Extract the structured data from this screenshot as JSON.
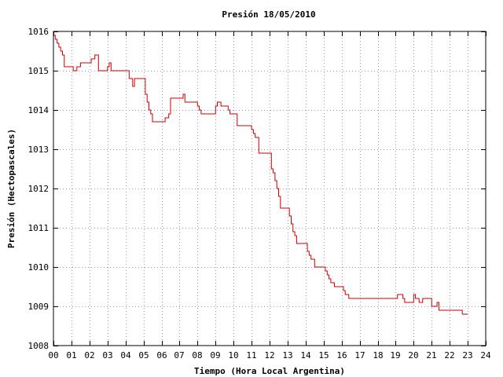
{
  "chart_data": {
    "type": "line",
    "title": "Presión 18/05/2010",
    "xlabel": "Tiempo (Hora Local Argentina)",
    "ylabel": "Presión (Hectopascales)",
    "xlim": [
      0,
      24
    ],
    "ylim": [
      1008,
      1016
    ],
    "x_ticks": [
      "00",
      "01",
      "02",
      "03",
      "04",
      "05",
      "06",
      "07",
      "08",
      "09",
      "10",
      "11",
      "12",
      "13",
      "14",
      "15",
      "16",
      "17",
      "18",
      "19",
      "20",
      "21",
      "22",
      "23",
      "24"
    ],
    "y_ticks": [
      "1008",
      "1009",
      "1010",
      "1011",
      "1012",
      "1013",
      "1014",
      "1015",
      "1016"
    ],
    "grid": true,
    "line_color": "#cc0000",
    "grid_color": "#a0a0a0",
    "step": true,
    "series": [
      {
        "x": [
          0,
          0.1,
          0.2,
          0.3,
          0.4,
          0.5,
          0.6,
          1.1,
          1.3,
          1.5,
          2.1,
          2.2,
          2.3,
          2.4,
          2.5,
          3.0,
          3.1,
          3.2,
          3.5,
          4.2,
          4.4,
          4.5,
          5.0,
          5.1,
          5.2,
          5.3,
          5.4,
          5.5,
          5.6,
          6.0,
          6.2,
          6.3,
          6.4,
          6.5,
          6.6,
          7.0,
          7.1,
          7.2,
          7.3,
          8.0,
          8.1,
          8.2,
          8.3,
          9.0,
          9.1,
          9.3,
          9.6,
          9.7,
          9.8,
          10.0,
          10.1,
          10.2,
          10.3,
          11.0,
          11.1,
          11.2,
          11.3,
          11.4,
          12.0,
          12.1,
          12.2,
          12.3,
          12.4,
          12.5,
          12.6,
          13.0,
          13.1,
          13.2,
          13.3,
          13.4,
          13.5,
          14.0,
          14.1,
          14.2,
          14.3,
          14.5,
          15.0,
          15.1,
          15.2,
          15.3,
          15.4,
          15.6,
          16.0,
          16.1,
          16.2,
          16.3,
          16.4,
          16.6,
          17.0,
          18.0,
          19.0,
          19.1,
          19.2,
          19.3,
          19.4,
          19.5,
          19.6,
          19.7,
          19.8,
          20.0,
          20.1,
          20.2,
          20.3,
          20.4,
          20.5,
          20.6,
          21.0,
          21.1,
          21.2,
          21.3,
          21.4,
          21.5,
          21.6,
          22.0,
          22.3,
          22.7,
          23.0
        ],
        "y": [
          1015.9,
          1015.8,
          1015.7,
          1015.6,
          1015.5,
          1015.4,
          1015.1,
          1015.0,
          1015.1,
          1015.2,
          1015.3,
          1015.3,
          1015.4,
          1015.4,
          1015.0,
          1015.1,
          1015.2,
          1015.0,
          1015.0,
          1014.8,
          1014.6,
          1014.8,
          1014.8,
          1014.4,
          1014.2,
          1014.0,
          1013.9,
          1013.7,
          1013.7,
          1013.7,
          1013.8,
          1013.8,
          1013.9,
          1014.3,
          1014.3,
          1014.3,
          1014.3,
          1014.4,
          1014.2,
          1014.1,
          1014.0,
          1013.9,
          1013.9,
          1014.1,
          1014.2,
          1014.1,
          1014.1,
          1014.0,
          1013.9,
          1013.9,
          1013.9,
          1013.6,
          1013.6,
          1013.5,
          1013.4,
          1013.3,
          1013.3,
          1012.9,
          1012.9,
          1012.5,
          1012.4,
          1012.2,
          1012.0,
          1011.8,
          1011.5,
          1011.5,
          1011.3,
          1011.1,
          1010.9,
          1010.8,
          1010.6,
          1010.6,
          1010.4,
          1010.3,
          1010.2,
          1010.0,
          1010.0,
          1009.9,
          1009.8,
          1009.7,
          1009.6,
          1009.5,
          1009.5,
          1009.4,
          1009.3,
          1009.3,
          1009.2,
          1009.2,
          1009.2,
          1009.2,
          1009.2,
          1009.3,
          1009.3,
          1009.3,
          1009.2,
          1009.1,
          1009.1,
          1009.1,
          1009.1,
          1009.3,
          1009.2,
          1009.2,
          1009.1,
          1009.1,
          1009.2,
          1009.2,
          1009.0,
          1009.0,
          1009.0,
          1009.1,
          1008.9,
          1008.9,
          1008.9,
          1008.9,
          1008.9,
          1008.8,
          1008.8
        ]
      }
    ]
  }
}
